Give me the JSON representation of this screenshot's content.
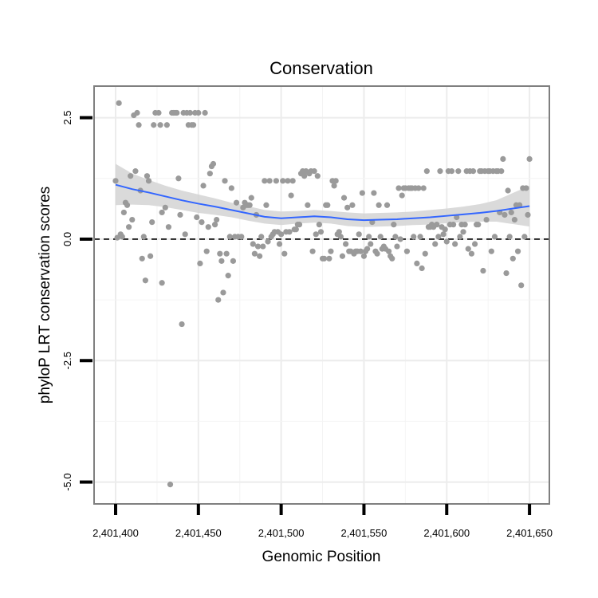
{
  "chart_data": {
    "type": "scatter",
    "title": "Conservation",
    "xlabel": "Genomic Position",
    "ylabel": "phyloP LRT conservation scores",
    "xlim": [
      2401387,
      2401662
    ],
    "ylim": [
      -5.45,
      3.15
    ],
    "x_ticks": [
      2401400,
      2401450,
      2401500,
      2401550,
      2401600,
      2401650
    ],
    "x_tick_labels": [
      "2,401,400",
      "2,401,450",
      "2,401,500",
      "2,401,550",
      "2,401,600",
      "2,401,650"
    ],
    "y_ticks": [
      2.5,
      0.0,
      -2.5,
      -5.0
    ],
    "y_tick_labels": [
      "2.5",
      "0.0",
      "-2.5",
      "-5.0"
    ],
    "y_minor_gridlines": [
      1.25,
      -1.25,
      -3.75
    ],
    "x_minor_gridlines": [
      2401425,
      2401475,
      2401525,
      2401575,
      2401625
    ],
    "reference_line": {
      "y": 0.0,
      "style": "dashed"
    },
    "grid": true,
    "point_color": "#9a9a9a",
    "smooth_color": "#3366ff",
    "band_color": "#d3d3d3",
    "points": [
      [
        2401400,
        1.2
      ],
      [
        2401401,
        0.03
      ],
      [
        2401402,
        2.8
      ],
      [
        2401403,
        0.1
      ],
      [
        2401404,
        0.05
      ],
      [
        2401405,
        0.55
      ],
      [
        2401406,
        0.75
      ],
      [
        2401407,
        0.7
      ],
      [
        2401408,
        0.25
      ],
      [
        2401409,
        1.3
      ],
      [
        2401410,
        0.4
      ],
      [
        2401411,
        2.55
      ],
      [
        2401412,
        1.4
      ],
      [
        2401413,
        2.6
      ],
      [
        2401414,
        2.35
      ],
      [
        2401415,
        1.0
      ],
      [
        2401416,
        -0.4
      ],
      [
        2401417,
        0.05
      ],
      [
        2401418,
        -0.85
      ],
      [
        2401419,
        1.3
      ],
      [
        2401420,
        1.2
      ],
      [
        2401421,
        -0.35
      ],
      [
        2401422,
        0.35
      ],
      [
        2401423,
        2.35
      ],
      [
        2401424,
        2.6
      ],
      [
        2401426,
        2.6
      ],
      [
        2401427,
        2.35
      ],
      [
        2401428,
        0.55
      ],
      [
        2401428,
        -0.9
      ],
      [
        2401430,
        0.65
      ],
      [
        2401431,
        2.35
      ],
      [
        2401432,
        0.25
      ],
      [
        2401433,
        -5.05
      ],
      [
        2401434,
        2.6
      ],
      [
        2401435,
        2.6
      ],
      [
        2401436,
        2.6
      ],
      [
        2401437,
        2.6
      ],
      [
        2401438,
        1.25
      ],
      [
        2401439,
        0.5
      ],
      [
        2401440,
        -1.75
      ],
      [
        2401441,
        2.6
      ],
      [
        2401442,
        0.1
      ],
      [
        2401443,
        2.6
      ],
      [
        2401444,
        2.35
      ],
      [
        2401445,
        2.6
      ],
      [
        2401446,
        2.35
      ],
      [
        2401447,
        2.35
      ],
      [
        2401448,
        2.6
      ],
      [
        2401449,
        0.45
      ],
      [
        2401450,
        2.6
      ],
      [
        2401451,
        -0.5
      ],
      [
        2401452,
        0.35
      ],
      [
        2401453,
        1.1
      ],
      [
        2401454,
        2.6
      ],
      [
        2401455,
        -0.25
      ],
      [
        2401456,
        0.25
      ],
      [
        2401457,
        1.35
      ],
      [
        2401458,
        1.5
      ],
      [
        2401459,
        1.55
      ],
      [
        2401460,
        0.3
      ],
      [
        2401461,
        0.4
      ],
      [
        2401462,
        -1.25
      ],
      [
        2401463,
        -0.3
      ],
      [
        2401464,
        -0.45
      ],
      [
        2401465,
        -1.1
      ],
      [
        2401466,
        1.2
      ],
      [
        2401467,
        -0.3
      ],
      [
        2401468,
        -0.75
      ],
      [
        2401469,
        0.05
      ],
      [
        2401470,
        1.05
      ],
      [
        2401471,
        -0.45
      ],
      [
        2401472,
        0.05
      ],
      [
        2401473,
        0.75
      ],
      [
        2401474,
        0.05
      ],
      [
        2401476,
        0.05
      ],
      [
        2401477,
        0.65
      ],
      [
        2401478,
        0.75
      ],
      [
        2401479,
        0.7
      ],
      [
        2401480,
        0.7
      ],
      [
        2401481,
        0.7
      ],
      [
        2401482,
        0.85
      ],
      [
        2401483,
        -0.1
      ],
      [
        2401484,
        -0.3
      ],
      [
        2401485,
        0.5
      ],
      [
        2401486,
        -0.15
      ],
      [
        2401487,
        -0.35
      ],
      [
        2401488,
        0.05
      ],
      [
        2401489,
        -0.15
      ],
      [
        2401490,
        1.2
      ],
      [
        2401491,
        0.7
      ],
      [
        2401492,
        -0.05
      ],
      [
        2401493,
        1.2
      ],
      [
        2401494,
        0.05
      ],
      [
        2401495,
        0.1
      ],
      [
        2401496,
        0.15
      ],
      [
        2401497,
        1.2
      ],
      [
        2401498,
        0.15
      ],
      [
        2401499,
        -0.1
      ],
      [
        2401500,
        0.1
      ],
      [
        2401501,
        1.2
      ],
      [
        2401502,
        -0.3
      ],
      [
        2401503,
        0.15
      ],
      [
        2401504,
        1.2
      ],
      [
        2401505,
        0.15
      ],
      [
        2401506,
        0.9
      ],
      [
        2401507,
        1.2
      ],
      [
        2401508,
        0.2
      ],
      [
        2401509,
        0.2
      ],
      [
        2401510,
        0.3
      ],
      [
        2401511,
        0.3
      ],
      [
        2401512,
        1.35
      ],
      [
        2401513,
        1.4
      ],
      [
        2401514,
        1.3
      ],
      [
        2401515,
        1.4
      ],
      [
        2401516,
        0.7
      ],
      [
        2401517,
        1.35
      ],
      [
        2401518,
        1.4
      ],
      [
        2401519,
        -0.25
      ],
      [
        2401520,
        1.4
      ],
      [
        2401521,
        0.1
      ],
      [
        2401522,
        1.3
      ],
      [
        2401523,
        0.3
      ],
      [
        2401524,
        0.15
      ],
      [
        2401525,
        -0.4
      ],
      [
        2401526,
        -0.4
      ],
      [
        2401527,
        0.7
      ],
      [
        2401528,
        0.7
      ],
      [
        2401529,
        -0.4
      ],
      [
        2401530,
        -0.25
      ],
      [
        2401531,
        1.2
      ],
      [
        2401532,
        1.1
      ],
      [
        2401533,
        1.2
      ],
      [
        2401534,
        0.1
      ],
      [
        2401535,
        0.15
      ],
      [
        2401536,
        0.05
      ],
      [
        2401537,
        -0.35
      ],
      [
        2401538,
        0.85
      ],
      [
        2401539,
        -0.1
      ],
      [
        2401540,
        0.65
      ],
      [
        2401541,
        -0.25
      ],
      [
        2401542,
        -0.25
      ],
      [
        2401543,
        0.7
      ],
      [
        2401544,
        -0.3
      ],
      [
        2401545,
        -0.25
      ],
      [
        2401546,
        -0.25
      ],
      [
        2401547,
        0.1
      ],
      [
        2401548,
        -0.25
      ],
      [
        2401549,
        0.95
      ],
      [
        2401550,
        -0.35
      ],
      [
        2401551,
        -0.25
      ],
      [
        2401552,
        -0.2
      ],
      [
        2401553,
        0.05
      ],
      [
        2401554,
        -0.1
      ],
      [
        2401555,
        0.35
      ],
      [
        2401556,
        0.95
      ],
      [
        2401557,
        -0.25
      ],
      [
        2401558,
        -0.3
      ],
      [
        2401559,
        0.7
      ],
      [
        2401560,
        0.05
      ],
      [
        2401561,
        -0.2
      ],
      [
        2401562,
        -0.15
      ],
      [
        2401563,
        -0.2
      ],
      [
        2401564,
        0.7
      ],
      [
        2401565,
        -0.25
      ],
      [
        2401566,
        -0.35
      ],
      [
        2401567,
        -0.4
      ],
      [
        2401568,
        0.3
      ],
      [
        2401569,
        0.05
      ],
      [
        2401570,
        -0.15
      ],
      [
        2401571,
        1.05
      ],
      [
        2401572,
        0.0
      ],
      [
        2401573,
        0.9
      ],
      [
        2401574,
        1.05
      ],
      [
        2401575,
        1.05
      ],
      [
        2401576,
        -0.25
      ],
      [
        2401577,
        1.05
      ],
      [
        2401578,
        1.05
      ],
      [
        2401579,
        1.05
      ],
      [
        2401580,
        0.05
      ],
      [
        2401581,
        1.05
      ],
      [
        2401582,
        -0.5
      ],
      [
        2401583,
        1.05
      ],
      [
        2401584,
        0.05
      ],
      [
        2401585,
        -0.6
      ],
      [
        2401586,
        1.05
      ],
      [
        2401587,
        -0.3
      ],
      [
        2401588,
        1.4
      ],
      [
        2401589,
        0.25
      ],
      [
        2401590,
        0.25
      ],
      [
        2401591,
        0.3
      ],
      [
        2401592,
        0.25
      ],
      [
        2401593,
        -0.1
      ],
      [
        2401594,
        0.3
      ],
      [
        2401595,
        0.05
      ],
      [
        2401596,
        1.4
      ],
      [
        2401597,
        0.25
      ],
      [
        2401598,
        0.1
      ],
      [
        2401599,
        0.2
      ],
      [
        2401600,
        -0.05
      ],
      [
        2401601,
        1.4
      ],
      [
        2401602,
        0.3
      ],
      [
        2401603,
        1.4
      ],
      [
        2401604,
        0.3
      ],
      [
        2401605,
        -0.1
      ],
      [
        2401606,
        0.45
      ],
      [
        2401607,
        1.4
      ],
      [
        2401608,
        0.05
      ],
      [
        2401609,
        0.3
      ],
      [
        2401610,
        0.15
      ],
      [
        2401611,
        0.3
      ],
      [
        2401612,
        1.4
      ],
      [
        2401613,
        -0.2
      ],
      [
        2401614,
        1.4
      ],
      [
        2401615,
        -0.3
      ],
      [
        2401616,
        1.4
      ],
      [
        2401617,
        -0.1
      ],
      [
        2401618,
        0.3
      ],
      [
        2401619,
        0.3
      ],
      [
        2401620,
        1.4
      ],
      [
        2401621,
        1.4
      ],
      [
        2401622,
        -0.65
      ],
      [
        2401623,
        1.4
      ],
      [
        2401624,
        0.4
      ],
      [
        2401625,
        1.4
      ],
      [
        2401626,
        1.4
      ],
      [
        2401627,
        -0.25
      ],
      [
        2401628,
        1.4
      ],
      [
        2401629,
        0.05
      ],
      [
        2401630,
        1.4
      ],
      [
        2401631,
        1.4
      ],
      [
        2401632,
        0.55
      ],
      [
        2401633,
        1.4
      ],
      [
        2401634,
        1.65
      ],
      [
        2401635,
        0.5
      ],
      [
        2401636,
        -0.7
      ],
      [
        2401637,
        1.0
      ],
      [
        2401638,
        0.05
      ],
      [
        2401639,
        0.55
      ],
      [
        2401640,
        -0.4
      ],
      [
        2401641,
        0.4
      ],
      [
        2401642,
        0.7
      ],
      [
        2401643,
        -0.25
      ],
      [
        2401644,
        0.7
      ],
      [
        2401645,
        -0.95
      ],
      [
        2401646,
        1.05
      ],
      [
        2401647,
        0.05
      ],
      [
        2401648,
        1.05
      ],
      [
        2401649,
        0.5
      ],
      [
        2401650,
        1.65
      ]
    ],
    "smooth_line": [
      [
        2401400,
        1.12
      ],
      [
        2401410,
        1.03
      ],
      [
        2401420,
        0.96
      ],
      [
        2401430,
        0.88
      ],
      [
        2401440,
        0.8
      ],
      [
        2401450,
        0.73
      ],
      [
        2401460,
        0.67
      ],
      [
        2401470,
        0.6
      ],
      [
        2401480,
        0.53
      ],
      [
        2401490,
        0.46
      ],
      [
        2401500,
        0.43
      ],
      [
        2401510,
        0.45
      ],
      [
        2401520,
        0.47
      ],
      [
        2401530,
        0.45
      ],
      [
        2401540,
        0.41
      ],
      [
        2401550,
        0.39
      ],
      [
        2401560,
        0.4
      ],
      [
        2401570,
        0.41
      ],
      [
        2401580,
        0.43
      ],
      [
        2401590,
        0.45
      ],
      [
        2401600,
        0.48
      ],
      [
        2401610,
        0.51
      ],
      [
        2401620,
        0.54
      ],
      [
        2401630,
        0.58
      ],
      [
        2401640,
        0.63
      ],
      [
        2401650,
        0.68
      ]
    ],
    "band_upper": [
      [
        2401400,
        1.55
      ],
      [
        2401410,
        1.35
      ],
      [
        2401420,
        1.22
      ],
      [
        2401430,
        1.1
      ],
      [
        2401440,
        1.0
      ],
      [
        2401450,
        0.92
      ],
      [
        2401460,
        0.84
      ],
      [
        2401470,
        0.75
      ],
      [
        2401480,
        0.68
      ],
      [
        2401490,
        0.6
      ],
      [
        2401500,
        0.57
      ],
      [
        2401510,
        0.58
      ],
      [
        2401520,
        0.6
      ],
      [
        2401530,
        0.58
      ],
      [
        2401540,
        0.55
      ],
      [
        2401550,
        0.53
      ],
      [
        2401560,
        0.54
      ],
      [
        2401570,
        0.55
      ],
      [
        2401580,
        0.57
      ],
      [
        2401590,
        0.6
      ],
      [
        2401600,
        0.63
      ],
      [
        2401610,
        0.67
      ],
      [
        2401620,
        0.72
      ],
      [
        2401630,
        0.8
      ],
      [
        2401640,
        0.95
      ],
      [
        2401650,
        1.1
      ]
    ],
    "band_lower": [
      [
        2401400,
        0.7
      ],
      [
        2401410,
        0.71
      ],
      [
        2401420,
        0.7
      ],
      [
        2401430,
        0.66
      ],
      [
        2401440,
        0.6
      ],
      [
        2401450,
        0.54
      ],
      [
        2401460,
        0.5
      ],
      [
        2401470,
        0.45
      ],
      [
        2401480,
        0.38
      ],
      [
        2401490,
        0.32
      ],
      [
        2401500,
        0.29
      ],
      [
        2401510,
        0.32
      ],
      [
        2401520,
        0.34
      ],
      [
        2401530,
        0.32
      ],
      [
        2401540,
        0.27
      ],
      [
        2401550,
        0.25
      ],
      [
        2401560,
        0.26
      ],
      [
        2401570,
        0.27
      ],
      [
        2401580,
        0.29
      ],
      [
        2401590,
        0.3
      ],
      [
        2401600,
        0.33
      ],
      [
        2401610,
        0.35
      ],
      [
        2401620,
        0.36
      ],
      [
        2401630,
        0.36
      ],
      [
        2401640,
        0.31
      ],
      [
        2401650,
        0.26
      ]
    ]
  }
}
